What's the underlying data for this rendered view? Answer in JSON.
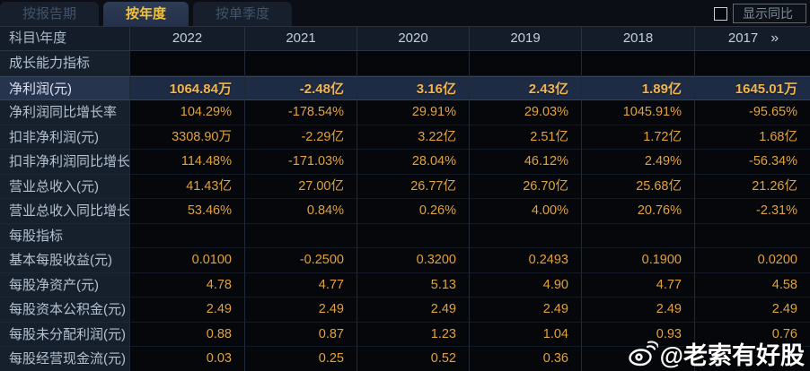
{
  "tabs": {
    "items": [
      {
        "label": "按报告期",
        "active": false
      },
      {
        "label": "按年度",
        "active": true
      },
      {
        "label": "按单季度",
        "active": false
      }
    ]
  },
  "controls": {
    "show_yoy_label": "显示同比",
    "checkbox_checked": false
  },
  "table": {
    "header": {
      "label_col": "科目\\年度",
      "years": [
        "2022",
        "2021",
        "2020",
        "2019",
        "2018",
        "2017"
      ],
      "more_icon": "»"
    },
    "rows": [
      {
        "type": "section",
        "label": "成长能力指标",
        "values": [
          "",
          "",
          "",
          "",
          "",
          ""
        ]
      },
      {
        "type": "highlight",
        "label": "净利润(元)",
        "values": [
          "1064.84万",
          "-2.48亿",
          "3.16亿",
          "2.43亿",
          "1.89亿",
          "1645.01万"
        ]
      },
      {
        "type": "data",
        "label": "净利润同比增长率",
        "values": [
          "104.29%",
          "-178.54%",
          "29.91%",
          "29.03%",
          "1045.91%",
          "-95.65%"
        ]
      },
      {
        "type": "data",
        "label": "扣非净利润(元)",
        "values": [
          "3308.90万",
          "-2.29亿",
          "3.22亿",
          "2.51亿",
          "1.72亿",
          "1.68亿"
        ]
      },
      {
        "type": "data",
        "label": "扣非净利润同比增长率",
        "values": [
          "114.48%",
          "-171.03%",
          "28.04%",
          "46.12%",
          "2.49%",
          "-56.34%"
        ]
      },
      {
        "type": "data",
        "label": "营业总收入(元)",
        "values": [
          "41.43亿",
          "27.00亿",
          "26.77亿",
          "26.70亿",
          "25.68亿",
          "21.26亿"
        ]
      },
      {
        "type": "data",
        "label": "营业总收入同比增长率",
        "values": [
          "53.46%",
          "0.84%",
          "0.26%",
          "4.00%",
          "20.76%",
          "-2.31%"
        ]
      },
      {
        "type": "section",
        "label": "每股指标",
        "values": [
          "",
          "",
          "",
          "",
          "",
          ""
        ]
      },
      {
        "type": "data",
        "label": "基本每股收益(元)",
        "values": [
          "0.0100",
          "-0.2500",
          "0.3200",
          "0.2493",
          "0.1900",
          "0.0200"
        ]
      },
      {
        "type": "data",
        "label": "每股净资产(元)",
        "values": [
          "4.78",
          "4.77",
          "5.13",
          "4.90",
          "4.77",
          "4.58"
        ]
      },
      {
        "type": "data",
        "label": "每股资本公积金(元)",
        "values": [
          "2.49",
          "2.49",
          "2.49",
          "2.49",
          "2.49",
          "2.49"
        ]
      },
      {
        "type": "data",
        "label": "每股未分配利润(元)",
        "values": [
          "0.88",
          "0.87",
          "1.23",
          "1.04",
          "0.93",
          "0.76"
        ]
      },
      {
        "type": "data",
        "label": "每股经营现金流(元)",
        "values": [
          "0.03",
          "0.25",
          "0.52",
          "0.36",
          "",
          ""
        ]
      }
    ]
  },
  "watermark": {
    "icon": "weibo-icon",
    "handle": "@老索有好股"
  },
  "colors": {
    "page_bg": "#07090d",
    "active_tab_text": "#f5c431",
    "value_gold": "#e2a23c",
    "highlight_gold": "#f3b54d",
    "highlight_row_bg": "#1e2b44",
    "label_col_bg": "#16202d",
    "header_bg": "#131c28"
  }
}
